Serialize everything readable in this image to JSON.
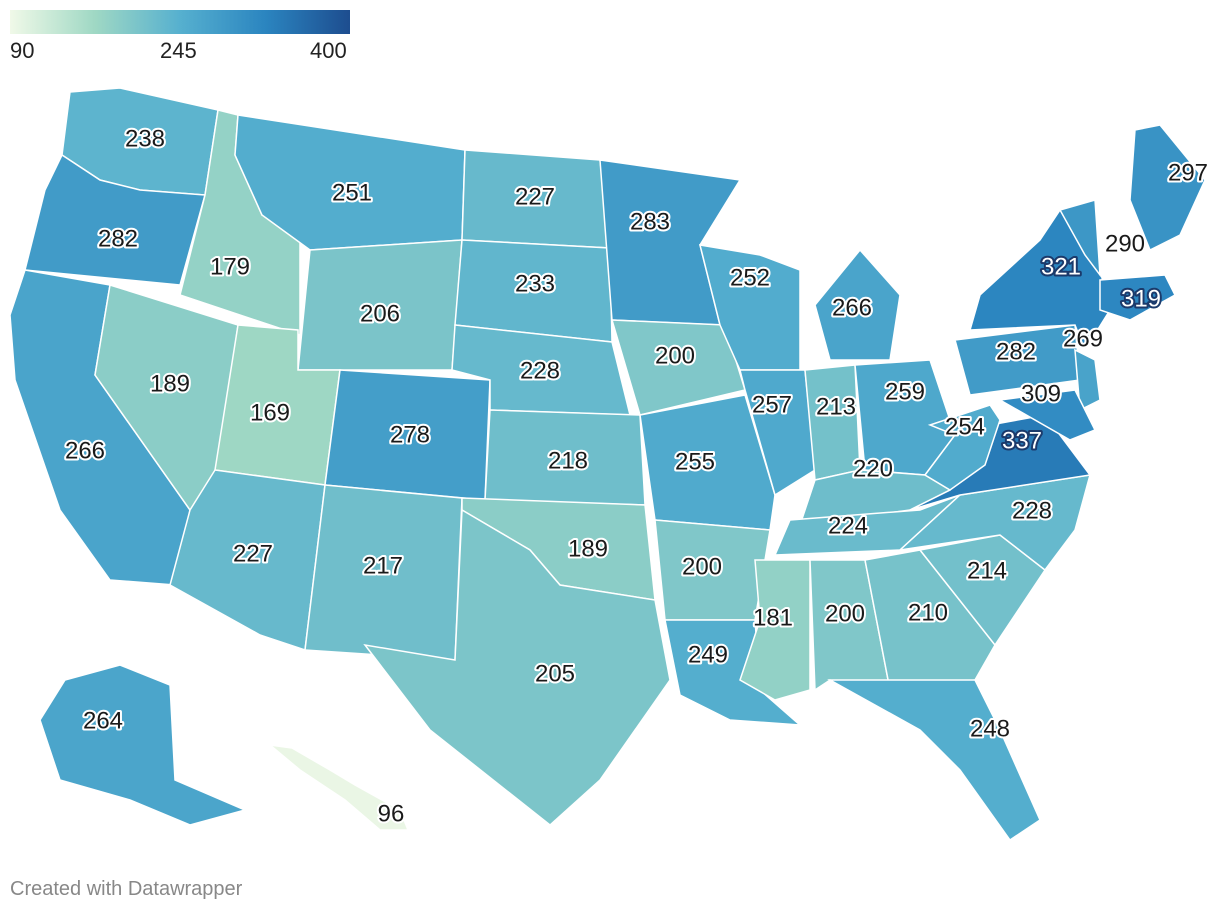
{
  "legend": {
    "min": "90",
    "mid": "245",
    "max": "400",
    "color_stops": [
      "#f0f9e8",
      "#9fd8c4",
      "#56b0cf",
      "#2b85c0",
      "#1d4d8f"
    ]
  },
  "footer": "Created with Datawrapper",
  "chart_data": {
    "type": "choropleth",
    "color_range": [
      90,
      400
    ],
    "states": [
      {
        "abbr": "WA",
        "value": 238
      },
      {
        "abbr": "OR",
        "value": 282
      },
      {
        "abbr": "CA",
        "value": 266
      },
      {
        "abbr": "ID",
        "value": 179
      },
      {
        "abbr": "NV",
        "value": 189
      },
      {
        "abbr": "MT",
        "value": 251
      },
      {
        "abbr": "WY",
        "value": 206
      },
      {
        "abbr": "UT",
        "value": 169
      },
      {
        "abbr": "AZ",
        "value": 227
      },
      {
        "abbr": "CO",
        "value": 278
      },
      {
        "abbr": "NM",
        "value": 217
      },
      {
        "abbr": "ND",
        "value": 227
      },
      {
        "abbr": "SD",
        "value": 233
      },
      {
        "abbr": "NE",
        "value": 228
      },
      {
        "abbr": "KS",
        "value": 218
      },
      {
        "abbr": "OK",
        "value": 189
      },
      {
        "abbr": "TX",
        "value": 205
      },
      {
        "abbr": "MN",
        "value": 283
      },
      {
        "abbr": "IA",
        "value": 200
      },
      {
        "abbr": "MO",
        "value": 255
      },
      {
        "abbr": "AR",
        "value": 200
      },
      {
        "abbr": "LA",
        "value": 249
      },
      {
        "abbr": "WI",
        "value": 252
      },
      {
        "abbr": "IL",
        "value": 257
      },
      {
        "abbr": "MI",
        "value": 266
      },
      {
        "abbr": "IN",
        "value": 213
      },
      {
        "abbr": "OH",
        "value": 259
      },
      {
        "abbr": "KY",
        "value": 220
      },
      {
        "abbr": "TN",
        "value": 224
      },
      {
        "abbr": "MS",
        "value": 181
      },
      {
        "abbr": "AL",
        "value": 200
      },
      {
        "abbr": "GA",
        "value": 210
      },
      {
        "abbr": "FL",
        "value": 248
      },
      {
        "abbr": "SC",
        "value": 214
      },
      {
        "abbr": "NC",
        "value": 228
      },
      {
        "abbr": "VA",
        "value": 337
      },
      {
        "abbr": "WV",
        "value": 254
      },
      {
        "abbr": "PA",
        "value": 282
      },
      {
        "abbr": "NY",
        "value": 321
      },
      {
        "abbr": "VT",
        "value": 290
      },
      {
        "abbr": "ME",
        "value": 297
      },
      {
        "abbr": "MA",
        "value": 319
      },
      {
        "abbr": "NJ",
        "value": 269
      },
      {
        "abbr": "MD",
        "value": 309
      },
      {
        "abbr": "AK",
        "value": 264
      },
      {
        "abbr": "HI",
        "value": 96
      }
    ]
  }
}
